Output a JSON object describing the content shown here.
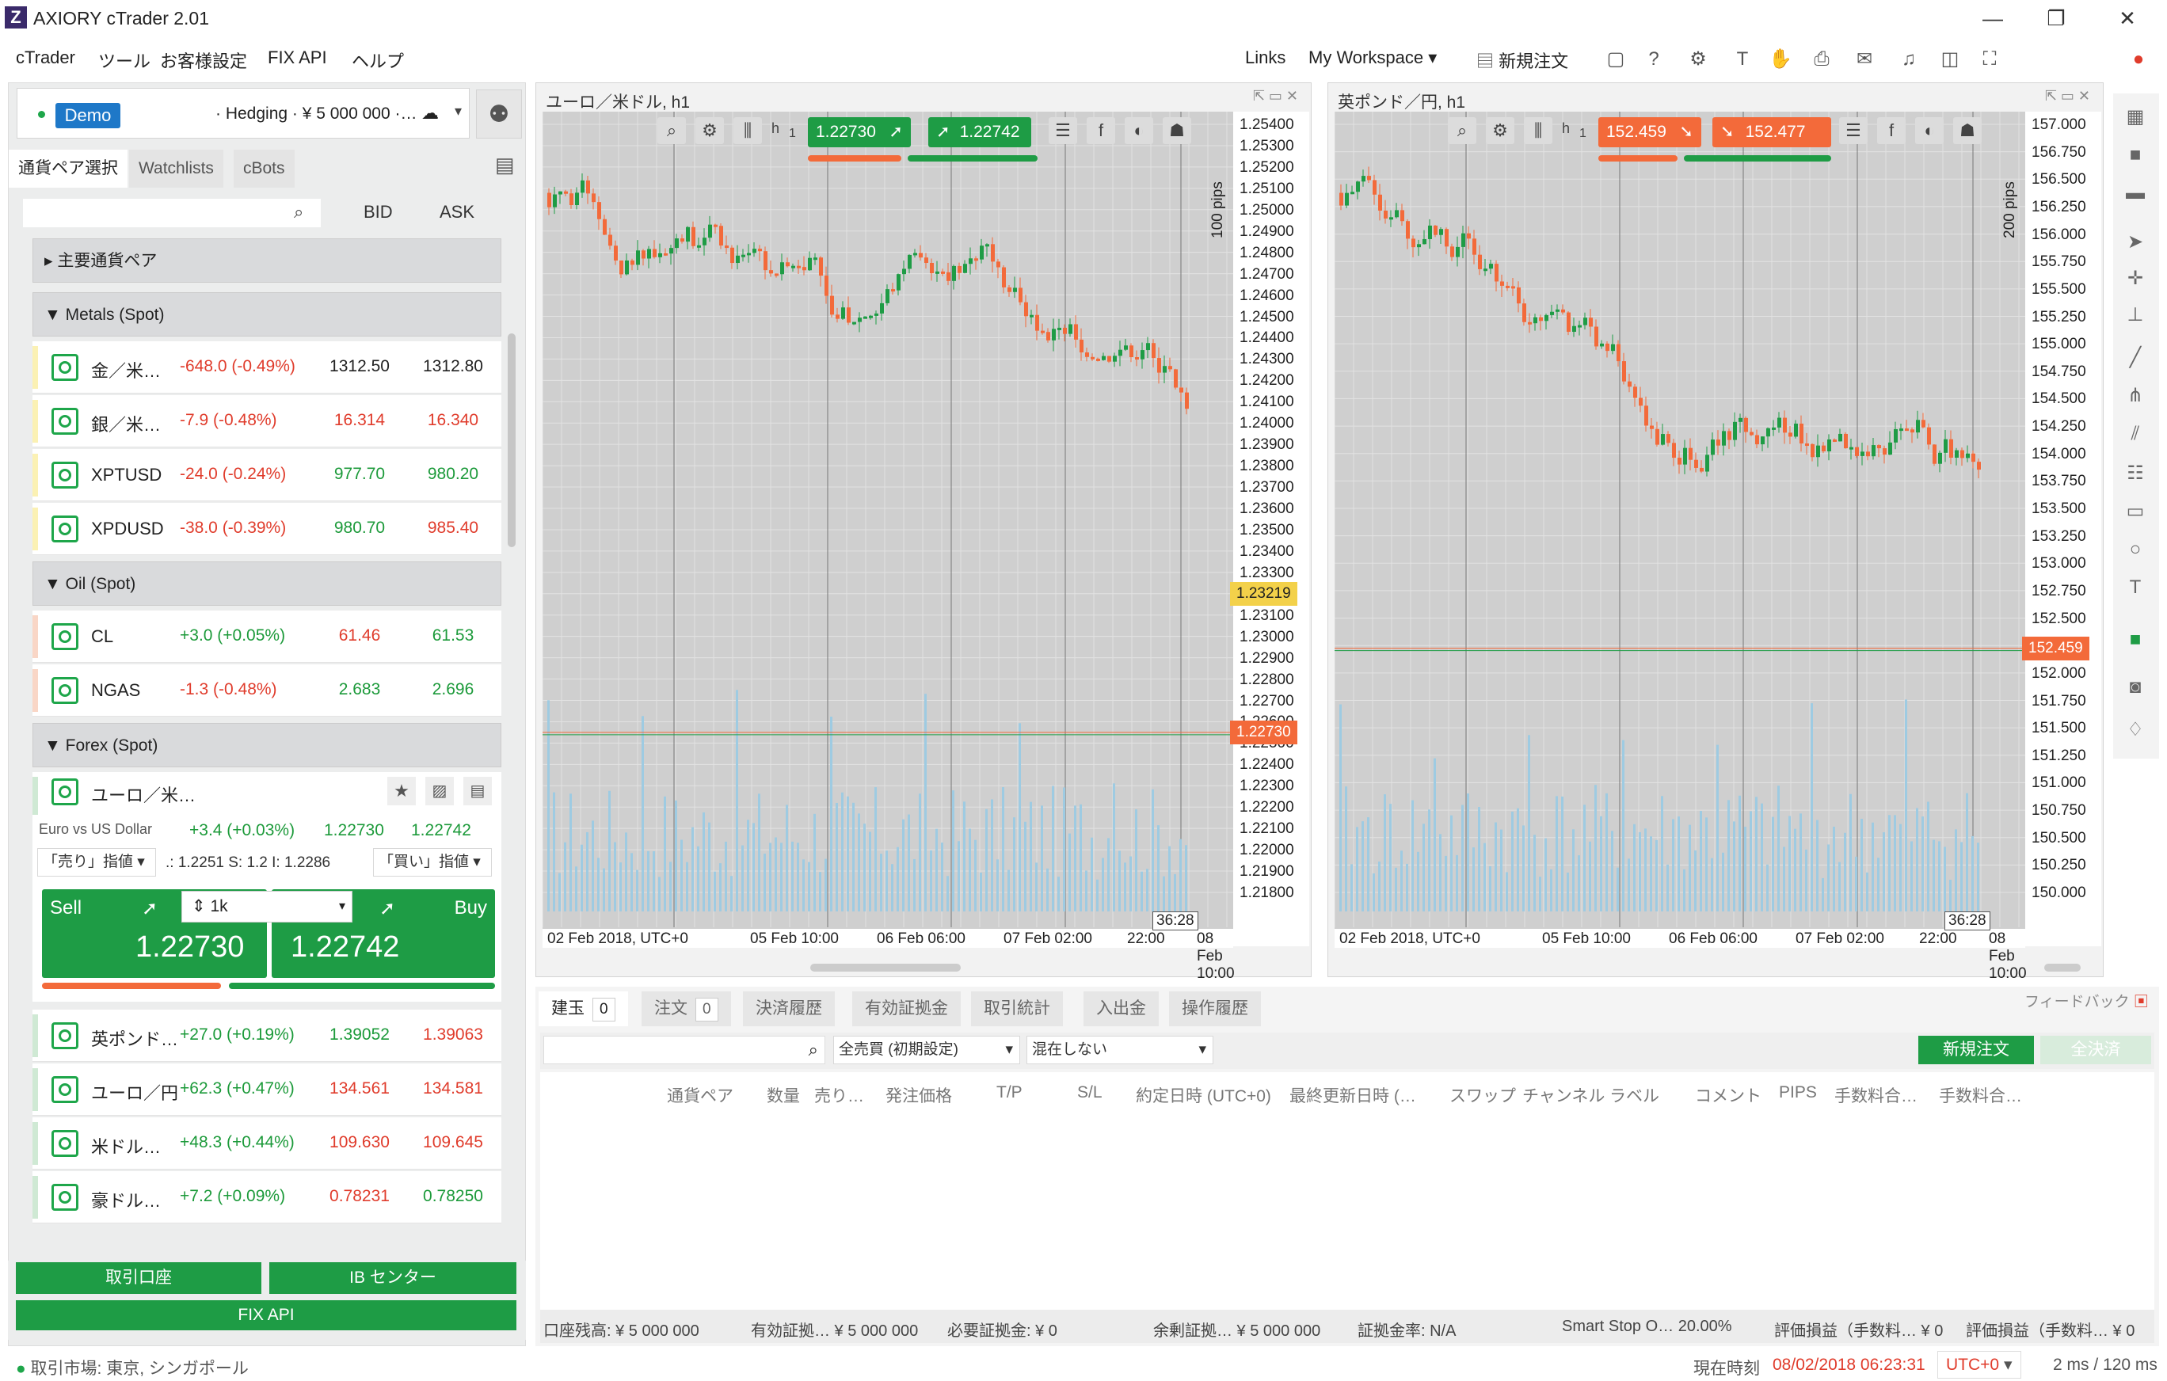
{
  "window": {
    "title": "AXIORY cTrader 2.01",
    "logo": "Z",
    "minimize": "—",
    "maximize": "❐",
    "close": "✕"
  },
  "menu": {
    "items": [
      "cTrader",
      "ツール",
      "お客様設定",
      "FIX API",
      "ヘルプ"
    ],
    "links": "Links",
    "workspace": "My Workspace",
    "new_order": "新規注文"
  },
  "account": {
    "badge": "Demo",
    "info": "· Hedging · ¥ 5 000 000 ·…"
  },
  "left_tabs": [
    "通貨ペア選択",
    "Watchlists",
    "cBots"
  ],
  "search": {
    "placeholder": ""
  },
  "list_headers": {
    "bid": "BID",
    "ask": "ASK"
  },
  "groups": {
    "major": "▸ 主要通貨ペア",
    "metals": "▼ Metals (Spot)",
    "oil": "▼ Oil (Spot)",
    "forex": "▼ Forex (Spot)"
  },
  "metals": [
    {
      "name": "金／米…",
      "change": "-648.0 (-0.49%)",
      "bid": "1312.50",
      "ask": "1312.80"
    },
    {
      "name": "銀／米…",
      "change": "-7.9 (-0.48%)",
      "bid": "16.314",
      "ask": "16.340"
    },
    {
      "name": "XPTUSD",
      "change": "-24.0 (-0.24%)",
      "bid": "977.70",
      "ask": "980.20"
    },
    {
      "name": "XPDUSD",
      "change": "-38.0 (-0.39%)",
      "bid": "980.70",
      "ask": "985.40"
    }
  ],
  "oil": [
    {
      "name": "CL",
      "change": "+3.0 (+0.05%)",
      "bid": "61.46",
      "ask": "61.53"
    },
    {
      "name": "NGAS",
      "change": "-1.3 (-0.48%)",
      "bid": "2.683",
      "ask": "2.696"
    }
  ],
  "eurusd": {
    "name": "ユーロ／米…",
    "desc": "Euro vs US Dollar",
    "change": "+3.4 (+0.03%)",
    "bid": "1.22730",
    "ask": "1.22742",
    "sell_limit": "「売り」指値",
    "spread_info": ".: 1.2251  S: 1.2  I: 1.2286",
    "buy_limit": "「買い」指値",
    "sell_label": "Sell",
    "buy_label": "Buy",
    "qty": "1k",
    "sell_price": "1.22730",
    "buy_price": "1.22742"
  },
  "forex": [
    {
      "name": "英ポンド…",
      "change": "+27.0 (+0.19%)",
      "bid": "1.39052",
      "ask": "1.39063"
    },
    {
      "name": "ユーロ／円",
      "change": "+62.3 (+0.47%)",
      "bid": "134.561",
      "ask": "134.581"
    },
    {
      "name": "米ドル…",
      "change": "+48.3 (+0.44%)",
      "bid": "109.630",
      "ask": "109.645"
    },
    {
      "name": "豪ドル…",
      "change": "+7.2 (+0.09%)",
      "bid": "0.78231",
      "ask": "0.78250"
    }
  ],
  "left_buttons": {
    "trading_account": "取引口座",
    "ib_center": "IB センター",
    "fix_api": "FIX API"
  },
  "chart1": {
    "title": "ユーロ／米ドル, h1",
    "period": "h",
    "sell_quote": "1.22730",
    "buy_quote": "1.22742",
    "pips_label": "100 pips",
    "countdown": "36:28",
    "current_price": "1.22730",
    "marker_price": "1.23219",
    "y_ticks": [
      "1.25400",
      "1.25300",
      "1.25200",
      "1.25100",
      "1.25000",
      "1.24900",
      "1.24800",
      "1.24700",
      "1.24600",
      "1.24500",
      "1.24400",
      "1.24300",
      "1.24200",
      "1.24100",
      "1.24000",
      "1.23900",
      "1.23800",
      "1.23700",
      "1.23600",
      "1.23500",
      "1.23400",
      "1.23300",
      "1.23200",
      "1.23100",
      "1.23000",
      "1.22900",
      "1.22800",
      "1.22700",
      "1.22600",
      "1.22500",
      "1.22400",
      "1.22300",
      "1.22200",
      "1.22100",
      "1.22000",
      "1.21900",
      "1.21800"
    ],
    "x_ticks": [
      "02 Feb 2018, UTC+0",
      "05 Feb 10:00",
      "06 Feb 06:00",
      "07 Feb 02:00",
      "22:00",
      "08 Feb 10:00"
    ]
  },
  "chart2": {
    "title": "英ポンド／円, h1",
    "period": "h",
    "sell_quote": "152.459",
    "buy_quote": "152.477",
    "pips_label": "200 pips",
    "countdown": "36:28",
    "current_price": "152.459",
    "y_ticks": [
      "157.000",
      "156.750",
      "156.500",
      "156.250",
      "156.000",
      "155.750",
      "155.500",
      "155.250",
      "155.000",
      "154.750",
      "154.500",
      "154.250",
      "154.000",
      "153.750",
      "153.500",
      "153.250",
      "153.000",
      "152.750",
      "152.500",
      "152.250",
      "152.000",
      "151.750",
      "151.500",
      "151.250",
      "151.000",
      "150.750",
      "150.500",
      "150.250",
      "150.000"
    ],
    "x_ticks": [
      "02 Feb 2018, UTC+0",
      "05 Feb 10:00",
      "06 Feb 06:00",
      "07 Feb 02:00",
      "22:00",
      "08 Feb 10:00"
    ]
  },
  "bottom": {
    "tabs": [
      {
        "label": "建玉",
        "count": "0"
      },
      {
        "label": "注文",
        "count": "0"
      },
      {
        "label": "決済履歴"
      },
      {
        "label": "有効証拠金"
      },
      {
        "label": "取引統計"
      },
      {
        "label": "入出金"
      },
      {
        "label": "操作履歴"
      }
    ],
    "feedback": "フィードバック",
    "filter1": "全売買 (初期設定)",
    "filter2": "混在しない",
    "new_order": "新規注文",
    "close_all": "全決済",
    "columns": [
      "通貨ペア",
      "数量",
      "売り…",
      "発注価格",
      "T/P",
      "S/L",
      "約定日時 (UTC+0)",
      "最終更新日時 (…",
      "スワップ",
      "チャンネル",
      "ラベル",
      "コメント",
      "PIPS",
      "手数料合…",
      "手数料合…"
    ],
    "status": [
      "口座残高: ¥ 5 000 000",
      "有効証拠… ¥ 5 000 000",
      "必要証拠金: ¥ 0",
      "余剰証拠… ¥ 5 000 000",
      "証拠金率: N/A",
      "Smart Stop O… 20.00%",
      "評価損益（手数料… ¥ 0",
      "評価損益（手数料… ¥ 0"
    ]
  },
  "footer": {
    "market": "取引市場: 東京, シンガポール",
    "time_label": "現在時刻",
    "time_value": "08/02/2018 06:23:31",
    "tz": "UTC+0",
    "latency": "2 ms / 120 ms"
  },
  "colors": {
    "up": "#1c9a3a",
    "down": "#e03c2c",
    "bull_candle": "#1e9c45",
    "bear_candle": "#f36a3a",
    "volume": "#9ecbe2"
  }
}
